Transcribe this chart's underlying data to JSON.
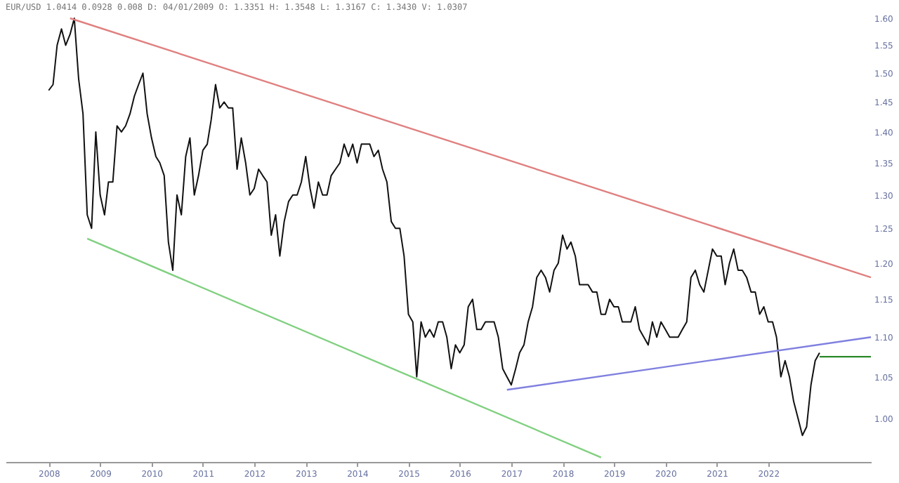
{
  "chart_data": {
    "type": "line",
    "title": "EUR/USD 1.0414 0.0928 0.008 D: 04/01/2009 O: 1.3351 H: 1.3548 L: 1.3167 C: 1.3430 V: 1.0307",
    "log": true,
    "grid": false,
    "marker": "none",
    "line_style": "solid",
    "xlim": [
      "2007-03",
      "2024-01"
    ],
    "ylim": [
      0.95,
      1.6
    ],
    "xticks": [
      "2008",
      "2009",
      "2010",
      "2011",
      "2012",
      "2013",
      "2014",
      "2015",
      "2016",
      "2017",
      "2018",
      "2019",
      "2020",
      "2021",
      "2022"
    ],
    "yticks": [
      {
        "value": 1.0,
        "label": "1.00"
      },
      {
        "value": 1.05,
        "label": "1.05"
      },
      {
        "value": 1.1,
        "label": "1.10"
      },
      {
        "value": 1.15,
        "label": "1.15"
      },
      {
        "value": 1.2,
        "label": "1.20"
      },
      {
        "value": 1.25,
        "label": "1.25"
      },
      {
        "value": 1.3,
        "label": "1.30"
      },
      {
        "value": 1.35,
        "label": "1.35"
      },
      {
        "value": 1.4,
        "label": "1.40"
      },
      {
        "value": 1.45,
        "label": "1.45"
      },
      {
        "value": 1.5,
        "label": "1.50"
      },
      {
        "value": 1.55,
        "label": "1.55"
      },
      {
        "value": 1.6,
        "label": "1.60"
      }
    ],
    "series": [
      {
        "color": "#111111",
        "x": [
          "2008-01",
          "2008-02",
          "2008-03",
          "2008-04",
          "2008-05",
          "2008-06",
          "2008-07",
          "2008-08",
          "2008-09",
          "2008-10",
          "2008-11",
          "2008-12",
          "2009-01",
          "2009-02",
          "2009-03",
          "2009-04",
          "2009-05",
          "2009-06",
          "2009-07",
          "2009-08",
          "2009-09",
          "2009-10",
          "2009-11",
          "2009-12",
          "2010-01",
          "2010-02",
          "2010-03",
          "2010-04",
          "2010-05",
          "2010-06",
          "2010-07",
          "2010-08",
          "2010-09",
          "2010-10",
          "2010-11",
          "2010-12",
          "2011-01",
          "2011-02",
          "2011-03",
          "2011-04",
          "2011-05",
          "2011-06",
          "2011-07",
          "2011-08",
          "2011-09",
          "2011-10",
          "2011-11",
          "2011-12",
          "2012-01",
          "2012-02",
          "2012-03",
          "2012-04",
          "2012-05",
          "2012-06",
          "2012-07",
          "2012-08",
          "2012-09",
          "2012-10",
          "2012-11",
          "2012-12",
          "2013-01",
          "2013-02",
          "2013-03",
          "2013-04",
          "2013-05",
          "2013-06",
          "2013-07",
          "2013-08",
          "2013-09",
          "2013-10",
          "2013-11",
          "2013-12",
          "2014-01",
          "2014-02",
          "2014-03",
          "2014-04",
          "2014-05",
          "2014-06",
          "2014-07",
          "2014-08",
          "2014-09",
          "2014-10",
          "2014-11",
          "2014-12",
          "2015-01",
          "2015-02",
          "2015-03",
          "2015-04",
          "2015-05",
          "2015-06",
          "2015-07",
          "2015-08",
          "2015-09",
          "2015-10",
          "2015-11",
          "2015-12",
          "2016-01",
          "2016-02",
          "2016-03",
          "2016-04",
          "2016-05",
          "2016-06",
          "2016-07",
          "2016-08",
          "2016-09",
          "2016-10",
          "2016-11",
          "2016-12",
          "2017-01",
          "2017-02",
          "2017-03",
          "2017-04",
          "2017-05",
          "2017-06",
          "2017-07",
          "2017-08",
          "2017-09",
          "2017-10",
          "2017-11",
          "2017-12",
          "2018-01",
          "2018-02",
          "2018-03",
          "2018-04",
          "2018-05",
          "2018-06",
          "2018-07",
          "2018-08",
          "2018-09",
          "2018-10",
          "2018-11",
          "2018-12",
          "2019-01",
          "2019-02",
          "2019-03",
          "2019-04",
          "2019-05",
          "2019-06",
          "2019-07",
          "2019-08",
          "2019-09",
          "2019-10",
          "2019-11",
          "2019-12",
          "2020-01",
          "2020-02",
          "2020-03",
          "2020-04",
          "2020-05",
          "2020-06",
          "2020-07",
          "2020-08",
          "2020-09",
          "2020-10",
          "2020-11",
          "2020-12",
          "2021-01",
          "2021-02",
          "2021-03",
          "2021-04",
          "2021-05",
          "2021-06",
          "2021-07",
          "2021-08",
          "2021-09",
          "2021-10",
          "2021-11",
          "2021-12",
          "2022-01",
          "2022-02",
          "2022-03",
          "2022-04",
          "2022-05",
          "2022-06",
          "2022-07",
          "2022-08",
          "2022-09",
          "2022-10",
          "2022-11",
          "2022-12",
          "2023-01"
        ],
        "values": [
          1.47,
          1.48,
          1.55,
          1.58,
          1.55,
          1.57,
          1.6,
          1.49,
          1.43,
          1.27,
          1.25,
          1.4,
          1.3,
          1.27,
          1.32,
          1.32,
          1.41,
          1.4,
          1.41,
          1.43,
          1.46,
          1.48,
          1.5,
          1.43,
          1.39,
          1.36,
          1.35,
          1.33,
          1.23,
          1.19,
          1.3,
          1.27,
          1.36,
          1.39,
          1.3,
          1.33,
          1.37,
          1.38,
          1.42,
          1.48,
          1.44,
          1.45,
          1.44,
          1.44,
          1.34,
          1.39,
          1.35,
          1.3,
          1.31,
          1.34,
          1.33,
          1.32,
          1.24,
          1.27,
          1.21,
          1.26,
          1.29,
          1.3,
          1.3,
          1.32,
          1.36,
          1.31,
          1.28,
          1.32,
          1.3,
          1.3,
          1.33,
          1.34,
          1.35,
          1.38,
          1.36,
          1.38,
          1.35,
          1.38,
          1.38,
          1.38,
          1.36,
          1.37,
          1.34,
          1.32,
          1.26,
          1.25,
          1.25,
          1.21,
          1.13,
          1.12,
          1.05,
          1.12,
          1.1,
          1.11,
          1.1,
          1.12,
          1.12,
          1.1,
          1.06,
          1.09,
          1.08,
          1.09,
          1.14,
          1.15,
          1.11,
          1.11,
          1.12,
          1.12,
          1.12,
          1.1,
          1.06,
          1.05,
          1.04,
          1.06,
          1.08,
          1.09,
          1.12,
          1.14,
          1.18,
          1.19,
          1.18,
          1.16,
          1.19,
          1.2,
          1.24,
          1.22,
          1.23,
          1.21,
          1.17,
          1.17,
          1.17,
          1.16,
          1.16,
          1.13,
          1.13,
          1.15,
          1.14,
          1.14,
          1.12,
          1.12,
          1.12,
          1.14,
          1.11,
          1.1,
          1.09,
          1.12,
          1.1,
          1.12,
          1.11,
          1.1,
          1.1,
          1.1,
          1.11,
          1.12,
          1.18,
          1.19,
          1.17,
          1.16,
          1.19,
          1.22,
          1.21,
          1.21,
          1.17,
          1.2,
          1.22,
          1.19,
          1.19,
          1.18,
          1.16,
          1.16,
          1.13,
          1.14,
          1.12,
          1.12,
          1.1,
          1.05,
          1.07,
          1.05,
          1.02,
          1.0,
          0.98,
          0.99,
          1.04,
          1.07,
          1.08
        ]
      },
      {
        "type": "line",
        "color": "#e08080",
        "x": [
          "2008-06",
          "2024-01"
        ],
        "values": [
          1.6,
          1.18
        ]
      },
      {
        "type": "line",
        "color": "#80d080",
        "x": [
          "2008-10",
          "2018-10"
        ],
        "values": [
          1.235,
          0.955
        ]
      },
      {
        "type": "line",
        "color": "#8080e0",
        "x": [
          "2016-12",
          "2024-01"
        ],
        "values": [
          1.034,
          1.1
        ]
      },
      {
        "type": "line",
        "color": "#2a8a2a",
        "x": [
          "2023-01",
          "2024-01"
        ],
        "values": [
          1.075,
          1.075
        ]
      }
    ]
  }
}
